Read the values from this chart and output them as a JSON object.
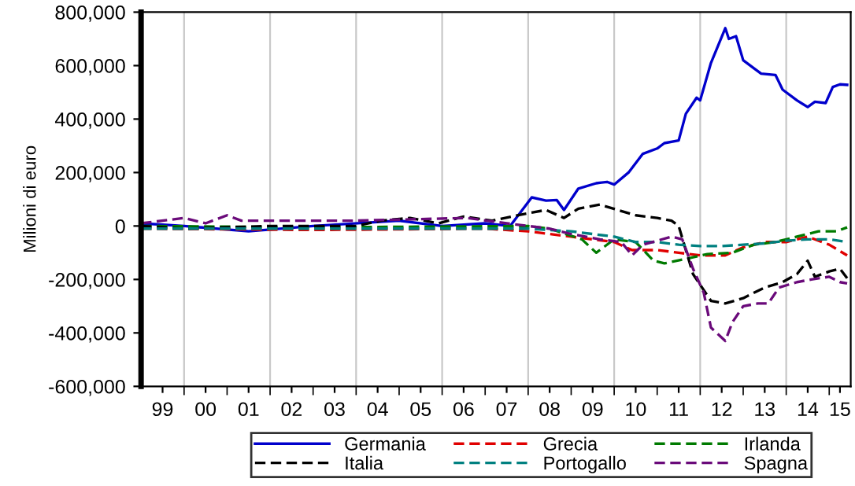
{
  "chart_data": {
    "type": "line",
    "ylabel": "Milioni di euro",
    "xlim": [
      "1999-01",
      "2015-07"
    ],
    "ylim": [
      -600000,
      800000
    ],
    "yticks": [
      {
        "value": -600000,
        "label": "-600,000"
      },
      {
        "value": -400000,
        "label": "-400,000"
      },
      {
        "value": -200000,
        "label": "-200,000"
      },
      0,
      {
        "value": 200000,
        "label": "200,000"
      },
      {
        "value": 400000,
        "label": "400,000"
      },
      {
        "value": 600000,
        "label": "600,000"
      },
      {
        "value": 800000,
        "label": "800,000"
      }
    ],
    "xticks": [
      {
        "value": "1999-07",
        "label": "99"
      },
      {
        "value": "2000-07",
        "label": "00"
      },
      {
        "value": "2001-07",
        "label": "01"
      },
      {
        "value": "2002-07",
        "label": "02"
      },
      {
        "value": "2003-07",
        "label": "03"
      },
      {
        "value": "2004-07",
        "label": "04"
      },
      {
        "value": "2005-07",
        "label": "05"
      },
      {
        "value": "2006-07",
        "label": "06"
      },
      {
        "value": "2007-07",
        "label": "07"
      },
      {
        "value": "2008-07",
        "label": "08"
      },
      {
        "value": "2009-07",
        "label": "09"
      },
      {
        "value": "2010-07",
        "label": "10"
      },
      {
        "value": "2011-07",
        "label": "11"
      },
      {
        "value": "2012-07",
        "label": "12"
      },
      {
        "value": "2013-07",
        "label": "13"
      },
      {
        "value": "2014-07",
        "label": "14"
      },
      {
        "value": "2015-04",
        "label": "15"
      },
      {
        "value": "2000-01",
        "label": null
      },
      {
        "value": "2001-01",
        "label": null
      },
      {
        "value": "2002-01",
        "label": null
      },
      {
        "value": "2003-01",
        "label": null
      },
      {
        "value": "2004-01",
        "label": null
      },
      {
        "value": "2005-01",
        "label": null
      },
      {
        "value": "2006-01",
        "label": null
      },
      {
        "value": "2007-01",
        "label": null
      },
      {
        "value": "2008-01",
        "label": null
      },
      {
        "value": "2009-01",
        "label": null
      },
      {
        "value": "2010-01",
        "label": null
      },
      {
        "value": "2011-01",
        "label": null
      },
      {
        "value": "2012-01",
        "label": null
      },
      {
        "value": "2013-01",
        "label": null
      },
      {
        "value": "2014-01",
        "label": null
      },
      {
        "value": "2015-01",
        "label": null
      }
    ],
    "ref_lines": [
      {
        "axis": "x",
        "value": "2000-01",
        "color": "#c8c8c8"
      },
      {
        "axis": "x",
        "value": "2002-01",
        "color": "#c8c8c8"
      },
      {
        "axis": "x",
        "value": "2004-01",
        "color": "#c8c8c8"
      },
      {
        "axis": "x",
        "value": "2006-01",
        "color": "#c8c8c8"
      },
      {
        "axis": "x",
        "value": "2008-01",
        "color": "#c8c8c8"
      },
      {
        "axis": "x",
        "value": "2010-01",
        "color": "#c8c8c8"
      },
      {
        "axis": "x",
        "value": "2012-01",
        "color": "#c8c8c8"
      },
      {
        "axis": "x",
        "value": "2014-01",
        "color": "#c8c8c8"
      }
    ],
    "grid": false,
    "legend": "bottom",
    "series": [
      {
        "name": "Germania",
        "color": "#0000cc",
        "line_style": "solid",
        "x": [
          "1999-01",
          "2000-01",
          "2001-07",
          "2003-01",
          "2005-01",
          "2006-01",
          "2007-01",
          "2007-08",
          "2008-02",
          "2008-06",
          "2008-09",
          "2008-11",
          "2009-03",
          "2009-08",
          "2009-11",
          "2010-01",
          "2010-05",
          "2010-09",
          "2011-01",
          "2011-03",
          "2011-07",
          "2011-09",
          "2011-12",
          "2012-01",
          "2012-04",
          "2012-08",
          "2012-09",
          "2012-11",
          "2013-01",
          "2013-04",
          "2013-06",
          "2013-10",
          "2013-12",
          "2014-04",
          "2014-07",
          "2014-09",
          "2014-12",
          "2015-02",
          "2015-04",
          "2015-06"
        ],
        "values": [
          10000,
          0,
          -20000,
          0,
          20000,
          0,
          10000,
          0,
          107000,
          95000,
          97000,
          60000,
          140000,
          160000,
          165000,
          155000,
          200000,
          270000,
          290000,
          310000,
          320000,
          420000,
          480000,
          470000,
          610000,
          740000,
          700000,
          710000,
          620000,
          590000,
          570000,
          565000,
          510000,
          470000,
          445000,
          465000,
          460000,
          520000,
          530000,
          528000
        ]
      },
      {
        "name": "Grecia",
        "color": "#e00000",
        "line_style": "dashed",
        "x": [
          "1999-01",
          "2003-01",
          "2007-01",
          "2008-01",
          "2009-01",
          "2010-01",
          "2010-06",
          "2011-01",
          "2011-07",
          "2012-01",
          "2012-08",
          "2013-01",
          "2013-07",
          "2014-01",
          "2014-07",
          "2015-01",
          "2015-06"
        ],
        "values": [
          -10000,
          -15000,
          -10000,
          -20000,
          -40000,
          -60000,
          -90000,
          -90000,
          -100000,
          -110000,
          -110000,
          -80000,
          -60000,
          -60000,
          -40000,
          -70000,
          -110000
        ]
      },
      {
        "name": "Irlanda",
        "color": "#007a00",
        "line_style": "dashed",
        "x": [
          "1999-01",
          "2003-01",
          "2008-01",
          "2008-07",
          "2009-04",
          "2009-08",
          "2009-10",
          "2010-01",
          "2010-07",
          "2010-12",
          "2011-03",
          "2011-10",
          "2012-03",
          "2012-10",
          "2013-04",
          "2013-10",
          "2014-04",
          "2014-10",
          "2015-03",
          "2015-06"
        ],
        "values": [
          0,
          -5000,
          0,
          -10000,
          -50000,
          -100000,
          -80000,
          -50000,
          -60000,
          -130000,
          -140000,
          -120000,
          -105000,
          -100000,
          -70000,
          -60000,
          -40000,
          -20000,
          -20000,
          -5000
        ]
      },
      {
        "name": "Italia",
        "color": "#000000",
        "line_style": "dashed",
        "x": [
          "1999-01",
          "2000-01",
          "2002-01",
          "2004-01",
          "2004-08",
          "2005-04",
          "2005-12",
          "2006-07",
          "2007-03",
          "2007-10",
          "2008-06",
          "2008-11",
          "2009-03",
          "2009-09",
          "2010-02",
          "2010-07",
          "2011-01",
          "2011-05",
          "2011-07",
          "2011-11",
          "2012-04",
          "2012-08",
          "2013-01",
          "2013-07",
          "2013-12",
          "2014-04",
          "2014-07",
          "2014-09",
          "2015-01",
          "2015-04",
          "2015-06"
        ],
        "values": [
          0,
          -10000,
          0,
          0,
          20000,
          30000,
          10000,
          35000,
          20000,
          40000,
          60000,
          30000,
          65000,
          80000,
          60000,
          40000,
          30000,
          20000,
          0,
          -180000,
          -280000,
          -290000,
          -270000,
          -230000,
          -210000,
          -180000,
          -130000,
          -190000,
          -170000,
          -160000,
          -195000
        ]
      },
      {
        "name": "Portogallo",
        "color": "#008080",
        "line_style": "dashed",
        "x": [
          "1999-01",
          "2003-01",
          "2008-01",
          "2009-01",
          "2010-01",
          "2010-07",
          "2011-01",
          "2011-07",
          "2012-01",
          "2012-07",
          "2013-01",
          "2013-07",
          "2014-01",
          "2014-07",
          "2015-01",
          "2015-06"
        ],
        "values": [
          -10000,
          -10000,
          -10000,
          -20000,
          -40000,
          -60000,
          -60000,
          -70000,
          -75000,
          -75000,
          -70000,
          -65000,
          -55000,
          -50000,
          -50000,
          -60000
        ]
      },
      {
        "name": "Spagna",
        "color": "#6a0a7a",
        "line_style": "dashed",
        "x": [
          "1999-01",
          "2000-01",
          "2000-07",
          "2001-01",
          "2001-05",
          "2004-01",
          "2006-08",
          "2007-07",
          "2008-01",
          "2008-07",
          "2009-01",
          "2009-09",
          "2010-03",
          "2010-06",
          "2010-09",
          "2011-05",
          "2011-08",
          "2011-11",
          "2012-02",
          "2012-04",
          "2012-08",
          "2012-10",
          "2013-01",
          "2013-05",
          "2013-08",
          "2013-11",
          "2014-04",
          "2014-08",
          "2015-01",
          "2015-04",
          "2015-06"
        ],
        "values": [
          10000,
          30000,
          10000,
          40000,
          20000,
          20000,
          30000,
          10000,
          0,
          -10000,
          -30000,
          -50000,
          -60000,
          -110000,
          -70000,
          -40000,
          -50000,
          -160000,
          -250000,
          -380000,
          -430000,
          -360000,
          -300000,
          -290000,
          -290000,
          -230000,
          -210000,
          -200000,
          -190000,
          -210000,
          -215000
        ]
      }
    ]
  }
}
